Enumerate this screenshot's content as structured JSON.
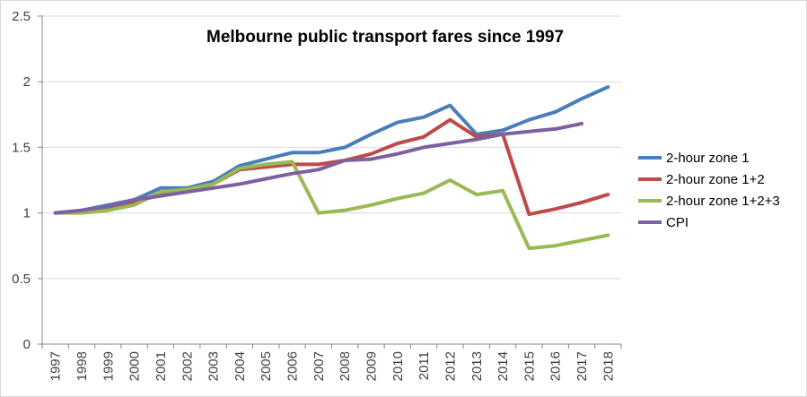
{
  "chart_data": {
    "type": "line",
    "title": "Melbourne public transport fares since 1997",
    "xlabel": "",
    "ylabel": "",
    "ylim": [
      0,
      2.5
    ],
    "yticks": [
      "0",
      "0.5",
      "1",
      "1.5",
      "2",
      "2.5"
    ],
    "grid": "horizontal",
    "legend_position": "right",
    "categories": [
      "1997",
      "1998",
      "1999",
      "2000",
      "2001",
      "2002",
      "2003",
      "2004",
      "2005",
      "2006",
      "2007",
      "2008",
      "2009",
      "2010",
      "2011",
      "2012",
      "2013",
      "2014",
      "2015",
      "2016",
      "2017",
      "2018"
    ],
    "series": [
      {
        "name": "2-hour zone 1",
        "color": "#4a7ebb",
        "values": [
          1.0,
          1.02,
          1.06,
          1.1,
          1.19,
          1.19,
          1.24,
          1.36,
          1.41,
          1.46,
          1.46,
          1.5,
          1.6,
          1.69,
          1.73,
          1.82,
          1.6,
          1.63,
          1.71,
          1.77,
          1.87,
          1.96
        ]
      },
      {
        "name": "2-hour zone 1+2",
        "color": "#be4b48",
        "values": [
          1.0,
          1.01,
          1.03,
          1.08,
          1.14,
          1.18,
          1.22,
          1.33,
          1.35,
          1.37,
          1.37,
          1.4,
          1.45,
          1.53,
          1.58,
          1.71,
          1.58,
          1.6,
          0.99,
          1.03,
          1.08,
          1.14
        ]
      },
      {
        "name": "2-hour zone 1+2+3",
        "color": "#98b954",
        "values": [
          1.0,
          1.0,
          1.02,
          1.06,
          1.16,
          1.18,
          1.22,
          1.34,
          1.37,
          1.39,
          1.0,
          1.02,
          1.06,
          1.11,
          1.15,
          1.25,
          1.14,
          1.17,
          0.73,
          0.75,
          0.79,
          0.83
        ]
      },
      {
        "name": "CPI",
        "color": "#7d60a0",
        "values": [
          1.0,
          1.02,
          1.05,
          1.1,
          1.13,
          1.16,
          1.19,
          1.22,
          1.26,
          1.3,
          1.33,
          1.4,
          1.41,
          1.45,
          1.5,
          1.53,
          1.56,
          1.6,
          1.62,
          1.64,
          1.68,
          null
        ]
      }
    ]
  }
}
